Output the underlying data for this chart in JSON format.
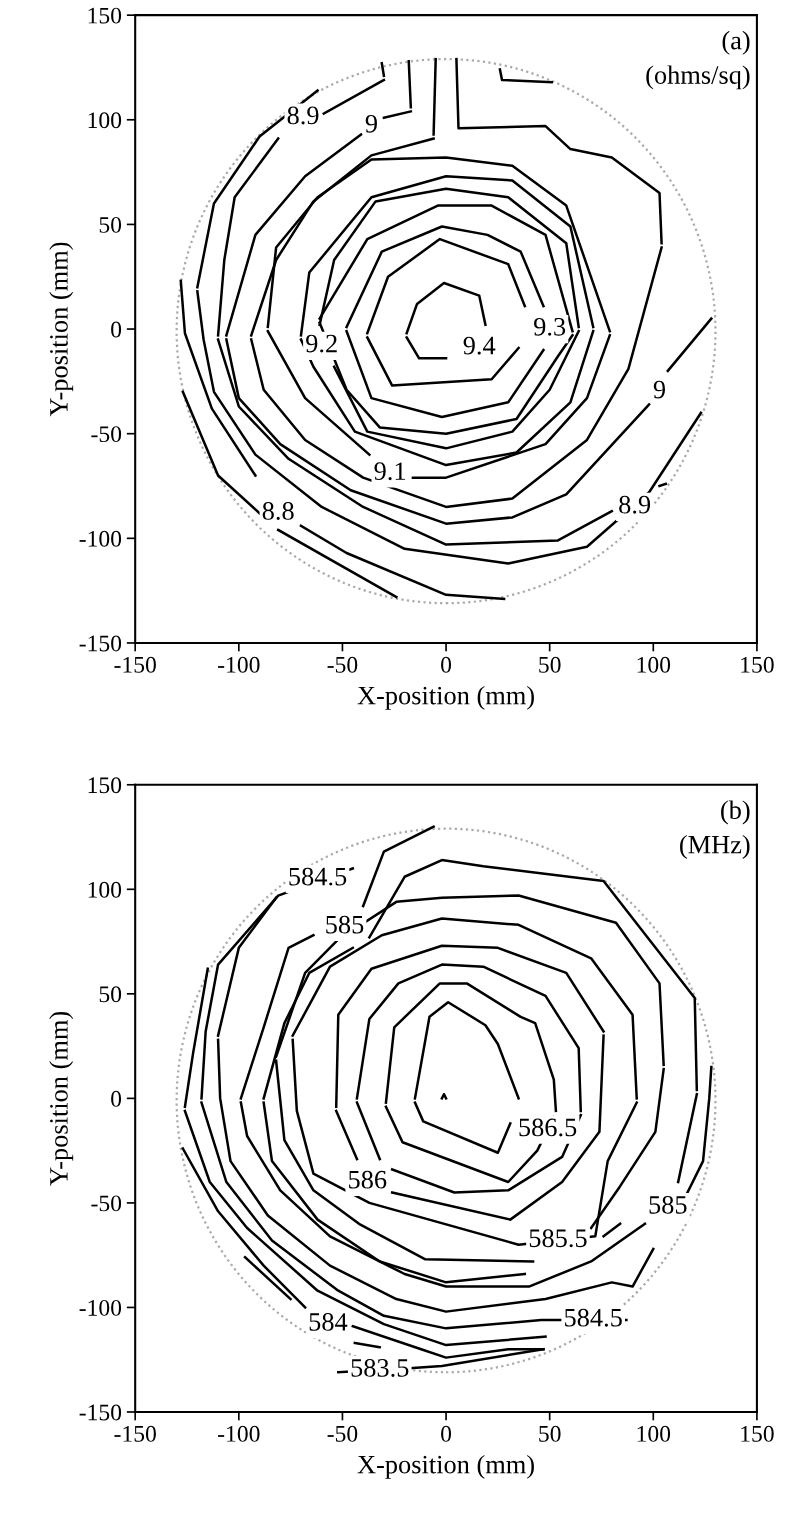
{
  "chart_data": [
    {
      "type": "line",
      "xlabel": "X-position (mm)",
      "ylabel": "Y-position (mm)",
      "xlim": [
        -150,
        150
      ],
      "ylim": [
        -150,
        150
      ],
      "xticks": [
        -150,
        -100,
        -50,
        0,
        50,
        100,
        150
      ],
      "yticks": [
        -150,
        -100,
        -50,
        0,
        50,
        100,
        150
      ],
      "marker": "none",
      "series": [
        {
          "color": "#000000",
          "x": [
            -19,
            -14,
            -1,
            16,
            19
          ],
          "values": [
            -2,
            12,
            22,
            16,
            2
          ]
        },
        {
          "color": "#000000",
          "x": [
            -19,
            -13,
            0
          ],
          "values": [
            -4,
            -14,
            -14
          ]
        },
        {
          "color": "#000000",
          "x": [
            -38,
            -26,
            22,
            35
          ],
          "values": [
            -4,
            -27,
            -24,
            -9
          ]
        },
        {
          "color": "#000000",
          "x": [
            -38,
            -28,
            -3,
            30,
            38
          ],
          "values": [
            -2,
            25,
            43,
            31,
            11
          ]
        },
        {
          "color": "#000000",
          "x": [
            -48,
            -31,
            -2,
            20,
            36,
            47
          ],
          "values": [
            1,
            37,
            49,
            45,
            37,
            11
          ]
        },
        {
          "color": "#000000",
          "x": [
            -48,
            -36,
            -2,
            30,
            47
          ],
          "values": [
            -1,
            -33,
            -42,
            -35,
            -10
          ]
        },
        {
          "color": "#000000",
          "x": [
            -61,
            -38,
            -4,
            22,
            48,
            61
          ],
          "values": [
            5,
            43,
            59,
            59,
            45,
            -1
          ]
        },
        {
          "color": "#000000",
          "x": [
            -61,
            -48,
            -32,
            0,
            34,
            54,
            61
          ],
          "values": [
            3,
            -29,
            -47,
            -50,
            -43,
            -13,
            -3
          ]
        },
        {
          "color": "#000000",
          "x": [
            -61,
            -54,
            -34,
            0,
            30,
            58,
            64
          ],
          "values": [
            2,
            33,
            61,
            67,
            63,
            41,
            1
          ]
        },
        {
          "color": "#000000",
          "x": [
            -54,
            -38,
            0,
            32,
            50,
            64
          ],
          "values": [
            -18,
            -49,
            -57,
            -49,
            -29,
            -1
          ]
        },
        {
          "color": "#000000",
          "x": [
            -70,
            -66,
            -36,
            0,
            32,
            60,
            71
          ],
          "values": [
            -3,
            27,
            63,
            73,
            71,
            49,
            1
          ]
        },
        {
          "color": "#000000",
          "x": [
            -70,
            -64,
            -44,
            0,
            34,
            60,
            71
          ],
          "values": [
            -5,
            -18,
            -49,
            -65,
            -59,
            -35,
            -1
          ]
        },
        {
          "color": "#000000",
          "x": [
            -86,
            -82,
            -62,
            -36,
            0,
            32,
            58,
            79
          ],
          "values": [
            1,
            39,
            63,
            81,
            82,
            78,
            59,
            -1
          ]
        },
        {
          "color": "#000000",
          "x": [
            -86,
            -68,
            -37,
            null,
            -16,
            0,
            48,
            68,
            79
          ],
          "values": [
            -1,
            -33,
            -60,
            null,
            -71,
            -71,
            -55,
            -33,
            -3
          ]
        },
        {
          "color": "#000000",
          "x": [
            -6,
            -5
          ],
          "values": [
            93,
            129
          ]
        },
        {
          "color": "#000000",
          "x": [
            -94,
            -82,
            -64,
            -36,
            -6
          ],
          "values": [
            -3,
            33,
            61,
            83,
            91
          ]
        },
        {
          "color": "#000000",
          "x": [
            5,
            6,
            48,
            60,
            80,
            103,
            104
          ],
          "values": [
            129,
            96,
            97,
            86,
            82,
            65,
            41
          ]
        },
        {
          "color": "#000000",
          "x": [
            -94,
            -88,
            -68,
            -40,
            0,
            32,
            68,
            88,
            104
          ],
          "values": [
            -5,
            -29,
            -53,
            -71,
            -85,
            -81,
            -53,
            -19,
            39
          ]
        },
        {
          "color": "#000000",
          "x": [
            -30,
            -17
          ],
          "values": [
            101,
            104
          ]
        },
        {
          "color": "#000000",
          "x": [
            -18,
            -17
          ],
          "values": [
            128,
            106
          ]
        },
        {
          "color": "#000000",
          "x": [
            -106,
            -92,
            -68,
            -41
          ],
          "values": [
            -3,
            45,
            73,
            93
          ]
        },
        {
          "color": "#000000",
          "x": [
            -106,
            -100,
            -80,
            -46,
            0,
            32,
            58,
            98,
            null,
            107,
            128
          ],
          "values": [
            -5,
            -33,
            -55,
            -77,
            -93,
            -90,
            -79,
            -36,
            null,
            -20,
            5
          ]
        },
        {
          "color": "#000000",
          "x": [
            26,
            27,
            51
          ],
          "values": [
            124,
            119,
            118
          ]
        },
        {
          "color": "#000000",
          "x": [
            -31,
            -30
          ],
          "values": [
            127,
            121
          ]
        },
        {
          "color": "#000000",
          "x": [
            -59,
            -30
          ],
          "values": [
            103,
            119
          ]
        },
        {
          "color": "#000000",
          "x": [
            -110,
            -107,
            -102,
            -81
          ],
          "values": [
            -3,
            33,
            63,
            91
          ]
        },
        {
          "color": "#000000",
          "x": [
            -110,
            -100,
            -76,
            -40,
            0,
            54,
            80,
            null,
            103,
            106
          ],
          "values": [
            -5,
            -37,
            -62,
            -85,
            -103,
            -101,
            -87,
            null,
            -75,
            -74
          ]
        },
        {
          "color": "#000000",
          "x": [
            -120,
            -112,
            -90,
            -62
          ],
          "values": [
            20,
            60,
            92,
            114
          ]
        },
        {
          "color": "#000000",
          "x": [
            -120,
            -117,
            -112,
            -92,
            -60,
            -20,
            30,
            68,
            98,
            123
          ],
          "values": [
            18,
            -5,
            -30,
            -60,
            -85,
            -105,
            -112,
            -104,
            -78,
            -40
          ]
        },
        {
          "color": "#000000",
          "x": [
            -128,
            -126,
            -113,
            -92,
            null,
            -70,
            -48,
            0,
            28
          ],
          "values": [
            23,
            -2,
            -38,
            -70,
            null,
            -94,
            -107,
            -127,
            -129
          ]
        },
        {
          "color": "#000000",
          "x": [
            -127,
            -110,
            -90,
            null,
            -81,
            -24
          ],
          "values": [
            -30,
            -70,
            -88,
            null,
            -96,
            -128
          ]
        }
      ],
      "annotations": [
        "(a)",
        "(ohms/sq)",
        {
          "text": "8.9",
          "x": -69,
          "y": 101
        },
        {
          "text": "9",
          "x": -36,
          "y": 97
        },
        {
          "text": "9.2",
          "x": -60,
          "y": -8
        },
        {
          "text": "9.4",
          "x": 16,
          "y": -9
        },
        {
          "text": "9.3",
          "x": 50,
          "y": 0
        },
        {
          "text": "9",
          "x": 103,
          "y": -30
        },
        {
          "text": "9.1",
          "x": -27,
          "y": -69
        },
        {
          "text": "8.8",
          "x": -81,
          "y": -88
        },
        {
          "text": "8.9",
          "x": 91,
          "y": -85
        }
      ]
    },
    {
      "type": "line",
      "xlabel": "X-position (mm)",
      "ylabel": "Y-position (mm)",
      "xlim": [
        -150,
        150
      ],
      "ylim": [
        -150,
        150
      ],
      "xticks": [
        -150,
        -100,
        -50,
        0,
        50,
        100,
        150
      ],
      "yticks": [
        -150,
        -100,
        -50,
        0,
        50,
        100,
        150
      ],
      "marker": "none",
      "series": [
        {
          "color": "#000000",
          "x": [
            -2,
            -1,
            0
          ],
          "values": [
            0,
            2,
            0
          ]
        },
        {
          "color": "#000000",
          "x": [
            -15,
            -8,
            1,
            19,
            25,
            35
          ],
          "values": [
            0,
            39,
            46,
            35,
            26,
            0
          ]
        },
        {
          "color": "#000000",
          "x": [
            -15,
            -11,
            25,
            31
          ],
          "values": [
            -2,
            -11,
            -26,
            -12
          ]
        },
        {
          "color": "#000000",
          "x": [
            -29,
            -25,
            -3,
            10,
            36,
            43,
            52,
            53
          ],
          "values": [
            -2,
            34,
            55,
            55,
            39,
            36,
            9,
            -6
          ]
        },
        {
          "color": "#000000",
          "x": [
            -29,
            -21,
            30,
            44,
            52
          ],
          "values": [
            -4,
            -21,
            -40,
            -25,
            -9
          ]
        },
        {
          "color": "#000000",
          "x": [
            -43,
            -37,
            -23,
            -2,
            18,
            48,
            64,
            65
          ],
          "values": [
            0,
            38,
            55,
            64,
            63,
            49,
            24,
            -6
          ]
        },
        {
          "color": "#000000",
          "x": [
            -43,
            -32,
            null,
            -26,
            4,
            30,
            56,
            65
          ],
          "values": [
            -2,
            -29,
            null,
            -34,
            -45,
            -44,
            -28,
            -8
          ]
        },
        {
          "color": "#000000",
          "x": [
            -53,
            -52,
            -36,
            -2,
            25,
            58,
            76
          ],
          "values": [
            -4,
            40,
            62,
            73,
            72,
            60,
            32
          ]
        },
        {
          "color": "#000000",
          "x": [
            -53,
            -43,
            null,
            -26,
            31,
            56,
            74,
            76
          ],
          "values": [
            -6,
            -29,
            null,
            -45,
            -58,
            -40,
            -16,
            30
          ]
        },
        {
          "color": "#000000",
          "x": [
            -74,
            -56,
            -31,
            -2,
            35,
            70,
            90,
            92
          ],
          "values": [
            30,
            63,
            78,
            86,
            83,
            67,
            40,
            0
          ]
        },
        {
          "color": "#000000",
          "x": [
            -74,
            -72,
            -64,
            -37,
            35,
            72,
            78,
            92
          ],
          "values": [
            28,
            -6,
            -36,
            -50,
            -70,
            -66,
            -30,
            -2
          ]
        },
        {
          "color": "#000000",
          "x": [
            -82,
            -68,
            -52,
            -24,
            -2,
            35,
            82,
            103,
            105
          ],
          "values": [
            20,
            60,
            76,
            94,
            96,
            97,
            84,
            55,
            16
          ]
        },
        {
          "color": "#000000",
          "x": [
            -82,
            -78,
            -64,
            -42,
            -10,
            42,
            null,
            70,
            84,
            101,
            105
          ],
          "values": [
            18,
            -20,
            -44,
            -60,
            -77,
            -78,
            null,
            -62,
            -42,
            -16,
            14
          ]
        },
        {
          "color": "#000000",
          "x": [
            -88,
            -78,
            -66,
            -45
          ],
          "values": [
            0,
            36,
            60,
            72
          ]
        },
        {
          "color": "#000000",
          "x": [
            -37,
            -20,
            -2,
            18,
            76,
            120,
            121
          ],
          "values": [
            77,
            106,
            114,
            111,
            104,
            48,
            4
          ]
        },
        {
          "color": "#000000",
          "x": [
            -88,
            -84,
            -62,
            -32,
            0,
            38,
            null,
            76,
            84
          ],
          "values": [
            -2,
            -30,
            -58,
            -78,
            -88,
            -84,
            null,
            -66,
            -60
          ]
        },
        {
          "color": "#000000",
          "x": [
            112,
            121
          ],
          "values": [
            -40,
            2
          ]
        },
        {
          "color": "#000000",
          "x": [
            -40,
            -30,
            -6
          ],
          "values": [
            92,
            118,
            130
          ]
        },
        {
          "color": "#000000",
          "x": [
            -99,
            -88,
            -76,
            -64
          ],
          "values": [
            0,
            34,
            72,
            78
          ]
        },
        {
          "color": "#000000",
          "x": [
            -99,
            -96,
            -80,
            -56,
            -20,
            0,
            40,
            70,
            96,
            null,
            116,
            124,
            127,
            128
          ],
          "values": [
            -2,
            -18,
            -44,
            -66,
            -84,
            -90,
            -90,
            -78,
            -60,
            null,
            -46,
            -30,
            0,
            15
          ]
        },
        {
          "color": "#000000",
          "x": [
            -110,
            -100,
            -82
          ],
          "values": [
            30,
            72,
            96
          ]
        },
        {
          "color": "#000000",
          "x": [
            -110,
            -109,
            -104,
            -86,
            -56,
            -24,
            0,
            48,
            80,
            90,
            100
          ],
          "values": [
            28,
            0,
            -30,
            -56,
            -80,
            -96,
            -102,
            -96,
            -88,
            -90,
            -72
          ]
        },
        {
          "color": "#000000",
          "x": [
            -118,
            -116,
            -110,
            -81,
            -45
          ],
          "values": [
            0,
            32,
            64,
            97,
            110
          ]
        },
        {
          "color": "#000000",
          "x": [
            -118,
            -106,
            -84,
            -52,
            -30,
            0,
            46,
            87
          ],
          "values": [
            -2,
            -40,
            -68,
            -92,
            -104,
            -110,
            -106,
            -106
          ]
        },
        {
          "color": "#000000",
          "x": [
            -126,
            -122,
            -115
          ],
          "values": [
            -4,
            22,
            62
          ]
        },
        {
          "color": "#000000",
          "x": [
            -126,
            -114,
            -96,
            -62,
            -30,
            0,
            48
          ],
          "values": [
            -6,
            -40,
            -62,
            -92,
            -108,
            -118,
            -114
          ]
        },
        {
          "color": "#000000",
          "x": [
            -127,
            -110,
            -88,
            -68,
            null,
            -45,
            -12,
            0,
            30,
            47
          ],
          "values": [
            -24,
            -54,
            -80,
            -100,
            null,
            -109,
            -120,
            -124,
            -120,
            -120
          ]
        },
        {
          "color": "#000000",
          "x": [
            -97,
            -75,
            null,
            -44,
            -32,
            null,
            -52,
            -16,
            -2,
            47
          ],
          "values": [
            -76,
            -96,
            null,
            -117,
            -119,
            null,
            -131,
            -129,
            -128,
            -120
          ]
        }
      ],
      "annotations": [
        "(b)",
        "(MHz)",
        {
          "text": "584.5",
          "x": -62,
          "y": 105
        },
        {
          "text": "585",
          "x": -49,
          "y": 82
        },
        {
          "text": "586.5",
          "x": 49,
          "y": -15
        },
        {
          "text": "586",
          "x": -38,
          "y": -40
        },
        {
          "text": "585.5",
          "x": 54,
          "y": -68
        },
        {
          "text": "585",
          "x": 107,
          "y": -52
        },
        {
          "text": "584.5",
          "x": 71,
          "y": -106
        },
        {
          "text": "584",
          "x": -57,
          "y": -108
        },
        {
          "text": "583.5",
          "x": -32,
          "y": -130
        }
      ]
    }
  ]
}
